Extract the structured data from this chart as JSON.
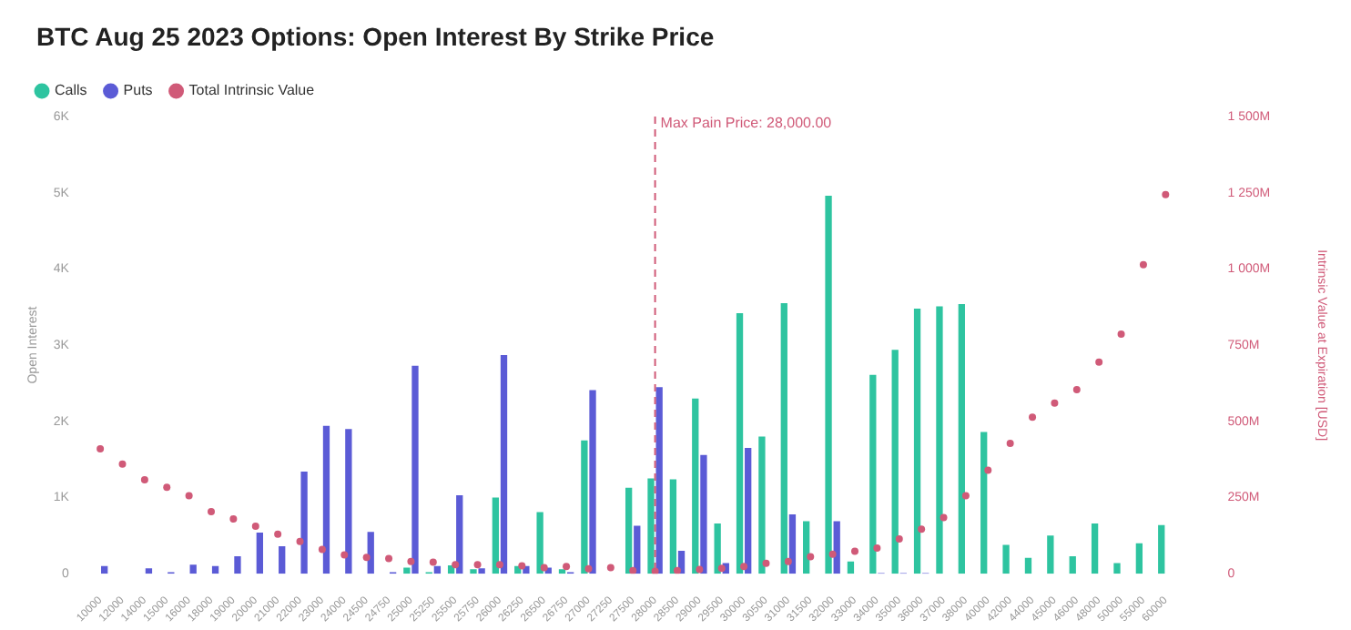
{
  "chart_data": {
    "type": "bar",
    "title": "BTC Aug 25 2023 Options: Open Interest By Strike Price",
    "ylabel": "Open Interest",
    "y2label": "Intrinsic Value at Expiration [USD]",
    "categories": [
      "10000",
      "12000",
      "14000",
      "15000",
      "16000",
      "18000",
      "19000",
      "20000",
      "21000",
      "22000",
      "23000",
      "24000",
      "24500",
      "24750",
      "25000",
      "25250",
      "25500",
      "25750",
      "26000",
      "26250",
      "26500",
      "26750",
      "27000",
      "27250",
      "27500",
      "28000",
      "28500",
      "29000",
      "29500",
      "30000",
      "30500",
      "31000",
      "31500",
      "32000",
      "33000",
      "34000",
      "35000",
      "36000",
      "37000",
      "38000",
      "40000",
      "42000",
      "44000",
      "45000",
      "46000",
      "48000",
      "50000",
      "55000",
      "60000"
    ],
    "series": [
      {
        "name": "Calls",
        "color": "#2ec4a0",
        "values": [
          0,
          0,
          0,
          0,
          0,
          0,
          0,
          0,
          0,
          0,
          0,
          0,
          0,
          0,
          80,
          20,
          110,
          60,
          1000,
          100,
          810,
          60,
          1750,
          0,
          1130,
          1250,
          1240,
          2300,
          660,
          3420,
          1800,
          3550,
          690,
          4960,
          160,
          2610,
          2940,
          3480,
          3510,
          3540,
          1860,
          380,
          210,
          500,
          230,
          660,
          140,
          400,
          640
        ]
      },
      {
        "name": "Puts",
        "color": "#5b5bd6",
        "values": [
          100,
          0,
          70,
          20,
          120,
          100,
          230,
          540,
          360,
          1340,
          1940,
          1900,
          550,
          20,
          2730,
          100,
          1030,
          70,
          2870,
          100,
          80,
          20,
          2410,
          0,
          630,
          2450,
          300,
          1560,
          140,
          1650,
          0,
          780,
          0,
          690,
          0,
          10,
          10,
          10,
          0,
          0,
          0,
          0,
          0,
          0,
          0,
          0,
          0,
          0,
          0
        ]
      },
      {
        "name": "Total Intrinsic Value",
        "type": "scatter",
        "axis": "y2",
        "color": "#d05a78",
        "marker": "circle",
        "values": [
          410,
          360,
          308,
          284,
          256,
          204,
          180,
          156,
          130,
          106,
          80,
          62,
          54,
          50,
          40,
          38,
          30,
          30,
          30,
          26,
          20,
          24,
          16,
          20,
          10,
          8,
          10,
          14,
          18,
          24,
          34,
          40,
          56,
          64,
          74,
          84,
          114,
          146,
          184,
          256,
          340,
          428,
          514,
          560,
          604,
          694,
          786,
          1014,
          1244
        ]
      }
    ],
    "ylim": [
      0,
      6000
    ],
    "yticks": [
      0,
      {
        "value": 1000,
        "label": "1K"
      },
      {
        "value": 2000,
        "label": "2K"
      },
      {
        "value": 3000,
        "label": "3K"
      },
      {
        "value": 4000,
        "label": "4K"
      },
      {
        "value": 5000,
        "label": "5K"
      },
      {
        "value": 6000,
        "label": "6K"
      }
    ],
    "y2lim": [
      0,
      1500
    ],
    "y2ticks": [
      0,
      {
        "value": 250,
        "label": "250M"
      },
      {
        "value": 500,
        "label": "500M"
      },
      {
        "value": 750,
        "label": "750M"
      },
      {
        "value": 1000,
        "label": "1 000M"
      },
      {
        "value": 1250,
        "label": "1 250M"
      },
      {
        "value": 1500,
        "label": "1 500M"
      }
    ],
    "ref_lines": [
      {
        "axis": "x",
        "value": "28000",
        "label": "Max Pain Price: 28,000.00",
        "color": "#d05a78",
        "line_style": "dashed"
      }
    ],
    "grid": false,
    "legend": "top left"
  }
}
